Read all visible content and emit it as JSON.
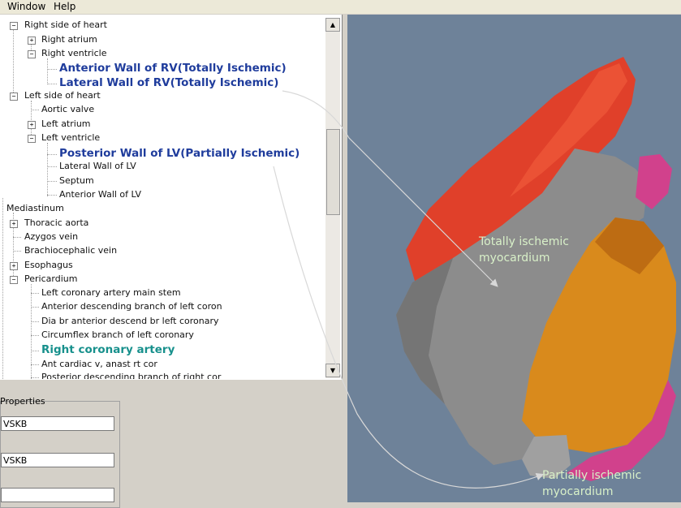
{
  "menu": {
    "items": [
      "Window",
      "Help"
    ]
  },
  "tree": {
    "items": [
      {
        "label": "Right side of heart",
        "expander": "minus"
      },
      {
        "label": "Right atrium",
        "expander": "plus"
      },
      {
        "label": "Right ventricle",
        "expander": "minus"
      },
      {
        "label": "Anterior Wall of RV(Totally Ischemic)",
        "highlight": "blue"
      },
      {
        "label": "Lateral Wall of RV(Totally Ischemic)",
        "highlight": "blue"
      },
      {
        "label": "Left side of heart",
        "expander": "minus"
      },
      {
        "label": "Aortic valve"
      },
      {
        "label": "Left atrium",
        "expander": "plus"
      },
      {
        "label": "Left ventricle",
        "expander": "minus"
      },
      {
        "label": "Posterior Wall of LV(Partially Ischemic)",
        "highlight": "blue"
      },
      {
        "label": "Lateral Wall of LV"
      },
      {
        "label": "Septum"
      },
      {
        "label": "Anterior Wall of LV"
      },
      {
        "label": "Mediastinum"
      },
      {
        "label": "Thoracic aorta",
        "expander": "plus"
      },
      {
        "label": "Azygos vein"
      },
      {
        "label": "Brachiocephalic vein"
      },
      {
        "label": "Esophagus",
        "expander": "plus"
      },
      {
        "label": "Pericardium",
        "expander": "minus"
      },
      {
        "label": "Left coronary artery main stem"
      },
      {
        "label": "Anterior descending branch of left coron"
      },
      {
        "label": "Dia br anterior descend br left coronary"
      },
      {
        "label": "Circumflex branch of left coronary"
      },
      {
        "label": "Right coronary artery",
        "highlight": "teal"
      },
      {
        "label": "Ant cardiac v, anast rt cor"
      },
      {
        "label": "Posterior descending branch of right cor"
      }
    ]
  },
  "scrollbar": {
    "up_glyph": "▲",
    "down_glyph": "▼"
  },
  "properties": {
    "title": "Properties",
    "fields": [
      "VSKB",
      "VSKB",
      ""
    ]
  },
  "viewer": {
    "label_total": [
      "Totally ischemic",
      "myocardium"
    ],
    "label_partial": [
      "Partially ischemic",
      "myocardium"
    ]
  },
  "colors": {
    "viewer_bg": "#6e8299",
    "rv_red": "#e0402a",
    "myocardium_gray": "#8c8c8c",
    "lv_orange": "#d98a1c",
    "magenta": "#d1418c",
    "tree_highlight_blue": "#1f3c9c",
    "tree_highlight_teal": "#17908c",
    "label_green": "#d8f0c8"
  }
}
